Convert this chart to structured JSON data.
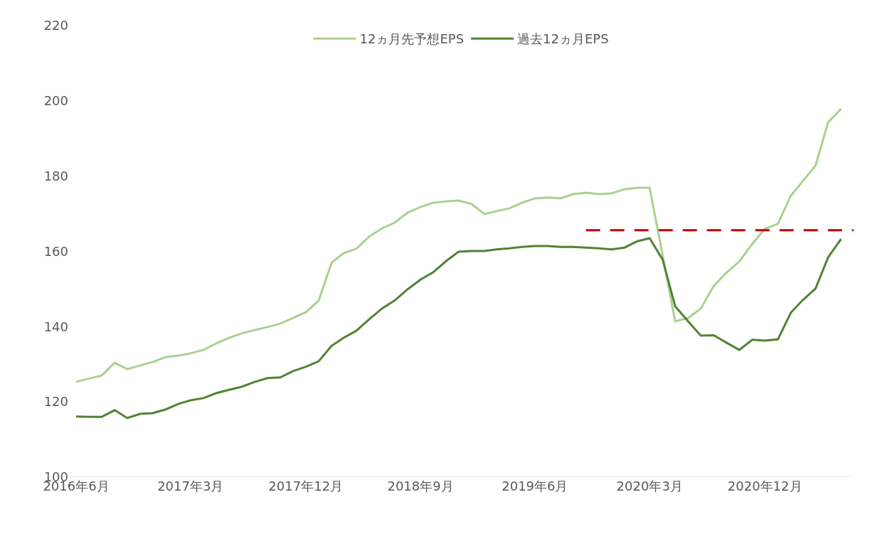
{
  "chart_data": {
    "type": "line",
    "x": [
      "2016-06",
      "2016-07",
      "2016-08",
      "2016-09",
      "2016-10",
      "2016-11",
      "2016-12",
      "2017-01",
      "2017-02",
      "2017-03",
      "2017-04",
      "2017-05",
      "2017-06",
      "2017-07",
      "2017-08",
      "2017-09",
      "2017-10",
      "2017-11",
      "2017-12",
      "2018-01",
      "2018-02",
      "2018-03",
      "2018-04",
      "2018-05",
      "2018-06",
      "2018-07",
      "2018-08",
      "2018-09",
      "2018-10",
      "2018-11",
      "2018-12",
      "2019-01",
      "2019-02",
      "2019-03",
      "2019-04",
      "2019-05",
      "2019-06",
      "2019-07",
      "2019-08",
      "2019-09",
      "2019-10",
      "2019-11",
      "2019-12",
      "2020-01",
      "2020-02",
      "2020-03",
      "2020-04",
      "2020-05",
      "2020-06",
      "2020-07",
      "2020-08",
      "2020-09",
      "2020-10",
      "2020-11",
      "2020-12",
      "2021-01",
      "2021-02",
      "2021-03",
      "2021-04",
      "2021-05",
      "2021-06"
    ],
    "series": [
      {
        "name": "12ヵ月先予想EPS",
        "color": "#a9d18e",
        "values": [
          125.3,
          126.2,
          127.0,
          130.4,
          128.7,
          129.7,
          130.6,
          131.9,
          132.3,
          132.9,
          133.8,
          135.5,
          137.0,
          138.2,
          139.1,
          139.9,
          140.8,
          142.3,
          143.8,
          146.9,
          157.0,
          159.5,
          160.7,
          163.9,
          166.1,
          167.6,
          170.3,
          171.8,
          172.9,
          173.3,
          173.5,
          172.6,
          169.9,
          170.7,
          171.4,
          172.9,
          174.1,
          174.3,
          174.1,
          175.2,
          175.6,
          175.2,
          175.4,
          176.5,
          176.9,
          176.9,
          159.0,
          141.4,
          142.3,
          144.8,
          150.8,
          154.4,
          157.3,
          162.0,
          166.0,
          167.3,
          174.8,
          178.6,
          182.8,
          194.3,
          197.9
        ]
      },
      {
        "name": "過去12ヵ月EPS",
        "color": "#548235",
        "values": [
          116.1,
          116.0,
          116.0,
          117.8,
          115.7,
          116.8,
          117.0,
          118.0,
          119.5,
          120.4,
          121.0,
          122.3,
          123.2,
          124.0,
          125.3,
          126.3,
          126.5,
          128.2,
          129.3,
          130.8,
          134.9,
          137.0,
          138.9,
          141.9,
          144.8,
          146.9,
          149.9,
          152.5,
          154.4,
          157.4,
          159.9,
          160.1,
          160.1,
          160.5,
          160.8,
          161.2,
          161.4,
          161.4,
          161.2,
          161.2,
          161.0,
          160.8,
          160.5,
          161.0,
          162.7,
          163.5,
          157.8,
          145.4,
          141.4,
          137.6,
          137.7,
          135.7,
          133.8,
          136.5,
          136.3,
          136.6,
          143.7,
          147.0,
          150.1,
          158.4,
          163.3
        ]
      },
      {
        "type": "line",
        "color": "#c00000",
        "line_style": "dashed",
        "x": [
          "2019-10",
          "2021-07"
        ],
        "values": [
          165.6,
          165.6
        ]
      }
    ],
    "xlim": [
      "2016-05-15",
      "2021-07-01"
    ],
    "xticks": [
      {
        "value": "2016-06",
        "label": "2016年6月"
      },
      {
        "value": "2017-03",
        "label": "2017年3月"
      },
      {
        "value": "2017-12",
        "label": "2017年12月"
      },
      {
        "value": "2018-09",
        "label": "2018年9月"
      },
      {
        "value": "2019-06",
        "label": "2019年6月"
      },
      {
        "value": "2020-03",
        "label": "2020年3月"
      },
      {
        "value": "2020-12",
        "label": "2020年12月"
      }
    ],
    "ylim": [
      100,
      220
    ],
    "yticks": [
      100,
      120,
      140,
      160,
      180,
      200,
      220
    ],
    "grid": false,
    "legend": "top",
    "marker": "none",
    "line_style": "solid"
  }
}
